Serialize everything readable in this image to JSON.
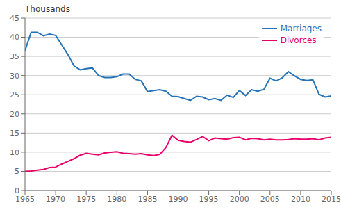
{
  "chart_data": {
    "type": "line",
    "ylabel": "Thousands",
    "x": [
      1965,
      1966,
      1967,
      1968,
      1969,
      1970,
      1971,
      1972,
      1973,
      1974,
      1975,
      1976,
      1977,
      1978,
      1979,
      1980,
      1981,
      1982,
      1983,
      1984,
      1985,
      1986,
      1987,
      1988,
      1989,
      1990,
      1991,
      1992,
      1993,
      1994,
      1995,
      1996,
      1997,
      1998,
      1999,
      2000,
      2001,
      2002,
      2003,
      2004,
      2005,
      2006,
      2007,
      2008,
      2009,
      2010,
      2011,
      2012,
      2013,
      2014,
      2015
    ],
    "series": [
      {
        "name": "Marriages",
        "color": "#2472b8",
        "values": [
          36.5,
          41.3,
          41.3,
          40.4,
          40.8,
          40.5,
          38.0,
          35.5,
          32.5,
          31.5,
          31.8,
          32.0,
          30.0,
          29.5,
          29.5,
          29.7,
          30.4,
          30.4,
          29.0,
          28.6,
          25.8,
          26.1,
          26.3,
          25.9,
          24.6,
          24.5,
          24.0,
          23.5,
          24.6,
          24.4,
          23.7,
          24.0,
          23.5,
          24.9,
          24.3,
          26.1,
          24.8,
          26.3,
          25.9,
          26.4,
          29.3,
          28.6,
          29.4,
          31.0,
          29.9,
          29.0,
          28.7,
          28.9,
          25.1,
          24.4,
          24.7
        ]
      },
      {
        "name": "Divorces",
        "color": "#e8006a",
        "values": [
          5.0,
          5.1,
          5.3,
          5.5,
          6.0,
          6.1,
          6.9,
          7.6,
          8.3,
          9.2,
          9.7,
          9.5,
          9.3,
          9.8,
          10.0,
          10.1,
          9.7,
          9.6,
          9.5,
          9.6,
          9.3,
          9.1,
          9.4,
          11.2,
          14.4,
          13.1,
          12.8,
          12.6,
          13.3,
          14.1,
          13.0,
          13.7,
          13.5,
          13.4,
          13.8,
          13.9,
          13.2,
          13.6,
          13.5,
          13.2,
          13.4,
          13.2,
          13.2,
          13.3,
          13.5,
          13.4,
          13.4,
          13.5,
          13.2,
          13.7,
          13.9
        ]
      }
    ],
    "xlim": [
      1965,
      2015
    ],
    "ylim": [
      0,
      45
    ],
    "xticks": [
      1965,
      1970,
      1975,
      1980,
      1985,
      1990,
      1995,
      2000,
      2005,
      2010,
      2015
    ],
    "yticks": [
      0,
      5,
      10,
      15,
      20,
      25,
      30,
      35,
      40,
      45
    ],
    "grid": true,
    "legend": "upper right"
  }
}
